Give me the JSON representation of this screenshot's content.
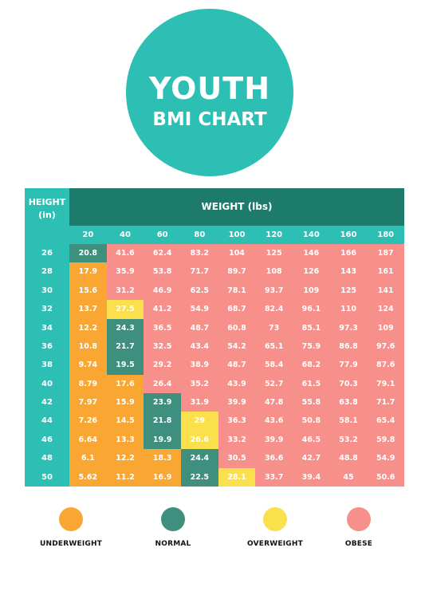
{
  "title": {
    "line1": "YOUTH",
    "line2": "BMI CHART"
  },
  "header": {
    "height_label": "HEIGHT",
    "height_unit": "(in)",
    "weight_label": "WEIGHT (lbs)"
  },
  "weights": [
    "20",
    "40",
    "60",
    "80",
    "100",
    "120",
    "140",
    "160",
    "180"
  ],
  "heights": [
    "26",
    "28",
    "30",
    "32",
    "34",
    "36",
    "38",
    "40",
    "42",
    "44",
    "46",
    "48",
    "50"
  ],
  "colors": {
    "underweight": "#f9a732",
    "normal": "#3f8f7f",
    "overweight": "#fbe04e",
    "obese": "#f78f8a",
    "teal": "#2ebfb4",
    "dark_teal": "#1d7b6c"
  },
  "rows": [
    {
      "values": [
        "20.8",
        "41.6",
        "62.4",
        "83.2",
        "104",
        "125",
        "146",
        "166",
        "187"
      ],
      "categories": [
        "N",
        "O",
        "O",
        "O",
        "O",
        "O",
        "O",
        "O",
        "O"
      ]
    },
    {
      "values": [
        "17.9",
        "35.9",
        "53.8",
        "71.7",
        "89.7",
        "108",
        "126",
        "143",
        "161"
      ],
      "categories": [
        "U",
        "O",
        "O",
        "O",
        "O",
        "O",
        "O",
        "O",
        "O"
      ]
    },
    {
      "values": [
        "15.6",
        "31.2",
        "46.9",
        "62.5",
        "78.1",
        "93.7",
        "109",
        "125",
        "141"
      ],
      "categories": [
        "U",
        "O",
        "O",
        "O",
        "O",
        "O",
        "O",
        "O",
        "O"
      ]
    },
    {
      "values": [
        "13.7",
        "27.5",
        "41.2",
        "54.9",
        "68.7",
        "82.4",
        "96.1",
        "110",
        "124"
      ],
      "categories": [
        "U",
        "W",
        "O",
        "O",
        "O",
        "O",
        "O",
        "O",
        "O"
      ]
    },
    {
      "values": [
        "12.2",
        "24.3",
        "36.5",
        "48.7",
        "60.8",
        "73",
        "85.1",
        "97.3",
        "109"
      ],
      "categories": [
        "U",
        "N",
        "O",
        "O",
        "O",
        "O",
        "O",
        "O",
        "O"
      ]
    },
    {
      "values": [
        "10.8",
        "21.7",
        "32.5",
        "43.4",
        "54.2",
        "65.1",
        "75.9",
        "86.8",
        "97.6"
      ],
      "categories": [
        "U",
        "N",
        "O",
        "O",
        "O",
        "O",
        "O",
        "O",
        "O"
      ]
    },
    {
      "values": [
        "9.74",
        "19.5",
        "29.2",
        "38.9",
        "48.7",
        "58.4",
        "68.2",
        "77.9",
        "87.6"
      ],
      "categories": [
        "U",
        "N",
        "O",
        "O",
        "O",
        "O",
        "O",
        "O",
        "O"
      ]
    },
    {
      "values": [
        "8.79",
        "17.6",
        "26.4",
        "35.2",
        "43.9",
        "52.7",
        "61.5",
        "70.3",
        "79.1"
      ],
      "categories": [
        "U",
        "U",
        "O",
        "O",
        "O",
        "O",
        "O",
        "O",
        "O"
      ]
    },
    {
      "values": [
        "7.97",
        "15.9",
        "23.9",
        "31.9",
        "39.9",
        "47.8",
        "55.8",
        "63.8",
        "71.7"
      ],
      "categories": [
        "U",
        "U",
        "N",
        "O",
        "O",
        "O",
        "O",
        "O",
        "O"
      ]
    },
    {
      "values": [
        "7.26",
        "14.5",
        "21.8",
        "29",
        "36.3",
        "43.6",
        "50.8",
        "58.1",
        "65.4"
      ],
      "categories": [
        "U",
        "U",
        "N",
        "W",
        "O",
        "O",
        "O",
        "O",
        "O"
      ]
    },
    {
      "values": [
        "6.64",
        "13.3",
        "19.9",
        "26.6",
        "33.2",
        "39.9",
        "46.5",
        "53.2",
        "59.8"
      ],
      "categories": [
        "U",
        "U",
        "N",
        "W",
        "O",
        "O",
        "O",
        "O",
        "O"
      ]
    },
    {
      "values": [
        "6.1",
        "12.2",
        "18.3",
        "24.4",
        "30.5",
        "36.6",
        "42.7",
        "48.8",
        "54.9"
      ],
      "categories": [
        "U",
        "U",
        "U",
        "N",
        "O",
        "O",
        "O",
        "O",
        "O"
      ]
    },
    {
      "values": [
        "5.62",
        "11.2",
        "16.9",
        "22.5",
        "28.1",
        "33.7",
        "39.4",
        "45",
        "50.6"
      ],
      "categories": [
        "U",
        "U",
        "U",
        "N",
        "W",
        "O",
        "O",
        "O",
        "O"
      ]
    }
  ],
  "legend": [
    {
      "label": "UNDERWEIGHT",
      "key": "U"
    },
    {
      "label": "NORMAL",
      "key": "N"
    },
    {
      "label": "OVERWEIGHT",
      "key": "W"
    },
    {
      "label": "OBESE",
      "key": "O"
    }
  ]
}
